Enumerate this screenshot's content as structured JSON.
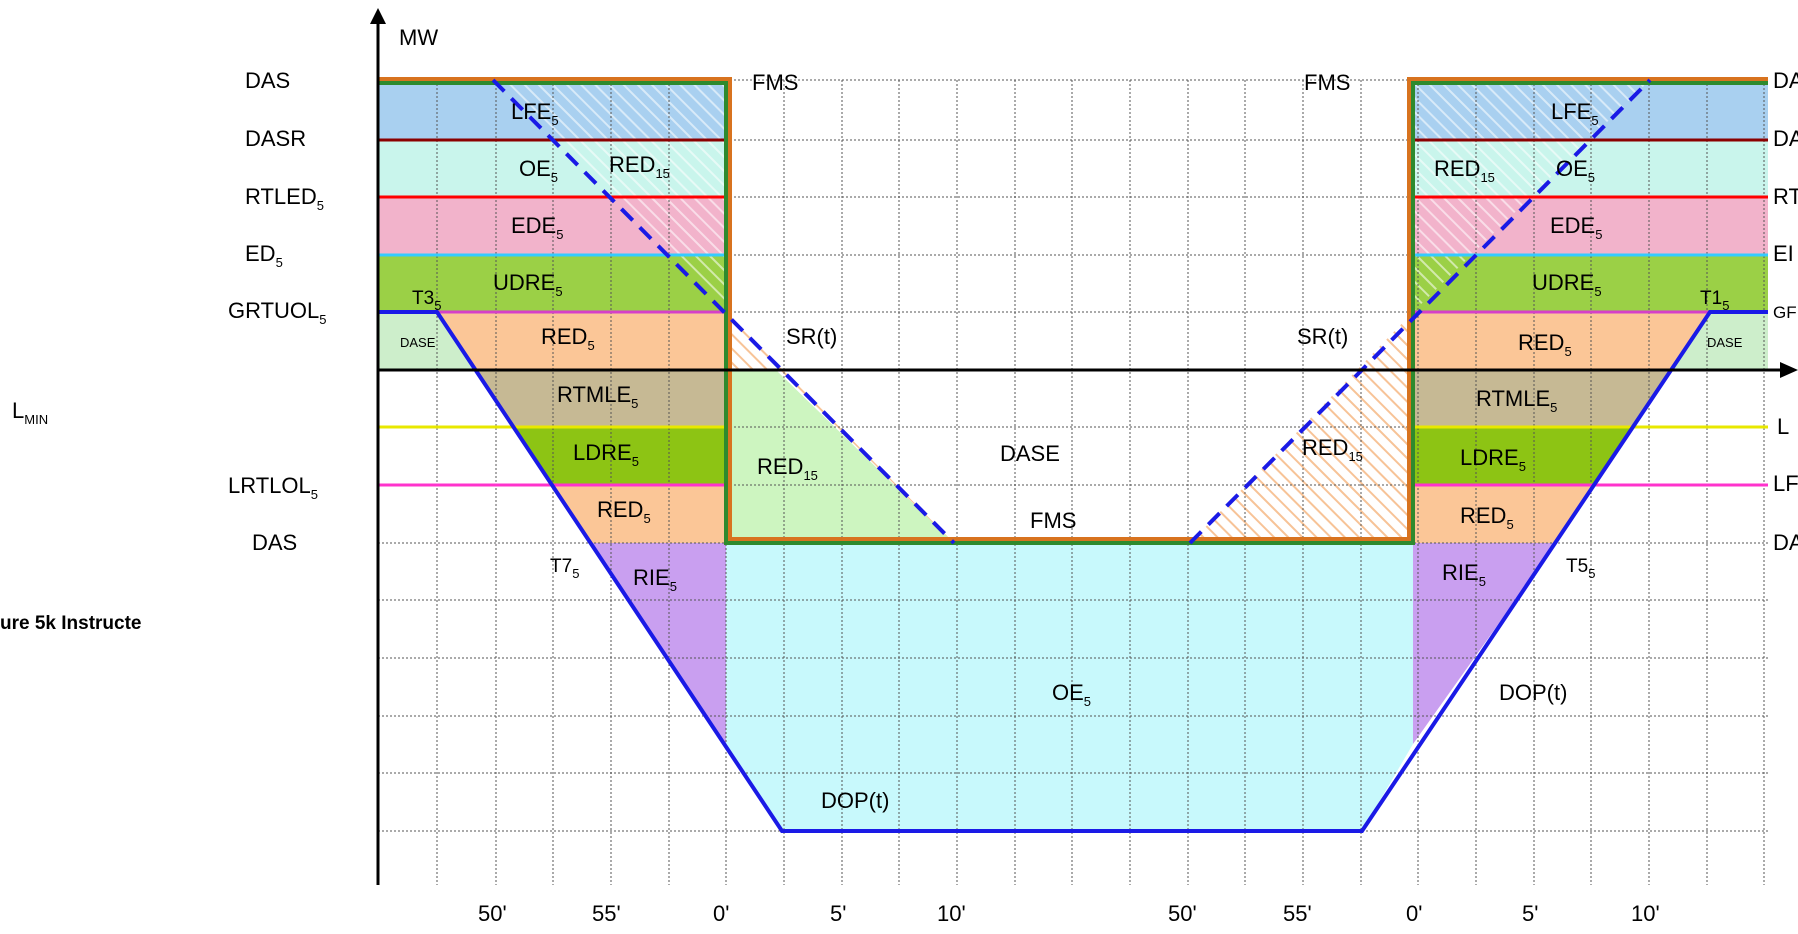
{
  "axis": {
    "y_label": "MW"
  },
  "left_labels": {
    "das_top": "DAS",
    "dasr": "DASR",
    "rtled": "RTLED",
    "ed": "ED",
    "grtuol": "GRTUOL",
    "lmin": "L",
    "lrtlol": "LRTLOL",
    "das_bottom": "DAS",
    "sub_5": "5",
    "sub_min": "MIN"
  },
  "caption": "ure 5k Instructe",
  "right_labels": {
    "das": "DA",
    "dasr": "DA",
    "rtled": "RT",
    "ed": "EI",
    "grtuol": "GF",
    "lmin": "L",
    "lrtlol": "LF",
    "das_bottom": "DA"
  },
  "x_ticks": [
    "50'",
    "55'",
    "0'",
    "5'",
    "10'",
    "50'",
    "55'",
    "0'",
    "5'",
    "10'"
  ],
  "region_labels": {
    "lfe": "LFE",
    "oe": "OE",
    "red15": "RED",
    "sub15": "15",
    "ede": "EDE",
    "udre": "UDRE",
    "red": "RED",
    "rtmle": "RTMLE",
    "ldre": "LDRE",
    "rie": "RIE",
    "dase": "DASE",
    "dase_small": "DASE",
    "fms": "FMS",
    "sr": "SR(t)",
    "dop": "DOP(t)",
    "t3": "T3",
    "t1": "T1",
    "t7": "T7",
    "t5": "T5"
  },
  "colors": {
    "lfe": "#a9d0f0",
    "oe_band": "#c9f5ec",
    "ede": "#f2b3cb",
    "udre": "#9bd046",
    "grt_area": "#cdeecb",
    "red": "#fbc697",
    "rtmle": "#c6b994",
    "ldre": "#8dc414",
    "rie": "#c99ff0",
    "oe_bottom": "#c8f9fc",
    "dase_center": "#cdf5c0",
    "fms_line": "#d8731f",
    "green_line": "#2e8a2e",
    "dop_line": "#1a1ae6",
    "dasr_line": "#8b0000",
    "rtled_line": "#ff0000",
    "ed_line": "#33ccff",
    "grtuol_line": "#d640c8",
    "lmin_line": "#e8e800",
    "lrtlol_line": "#ff33cc"
  }
}
